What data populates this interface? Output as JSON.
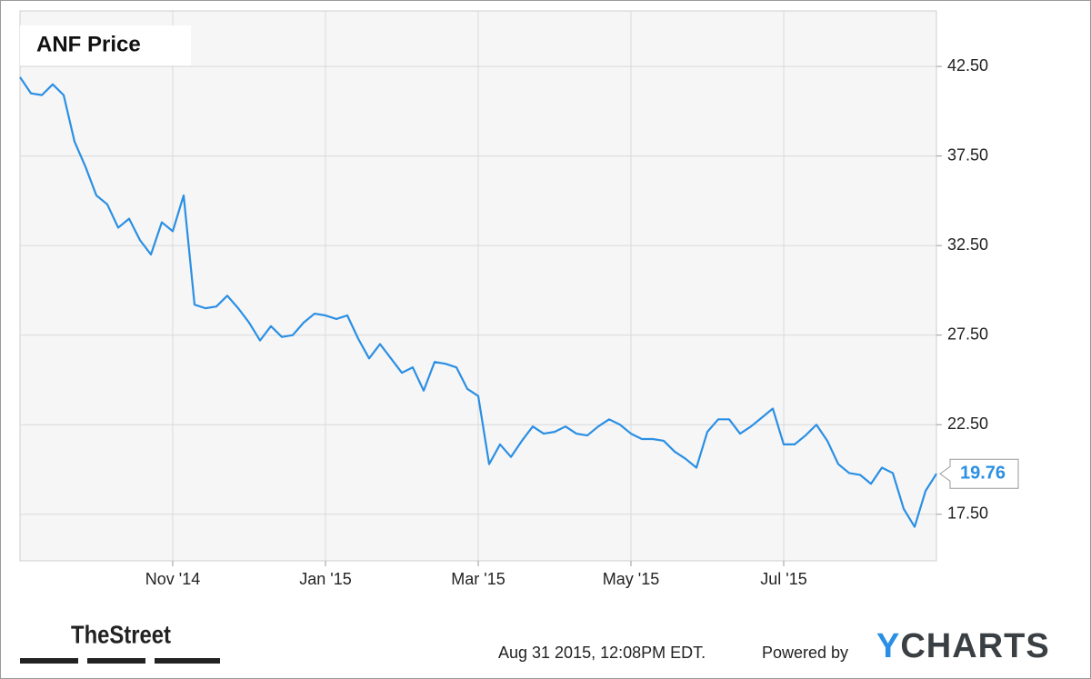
{
  "chart_data": {
    "type": "line",
    "title": "ANF Price",
    "categories": [
      null,
      null,
      null,
      null,
      null,
      null,
      null,
      null,
      null,
      null,
      null,
      null,
      null,
      null,
      "Nov '14",
      null,
      null,
      null,
      null,
      null,
      null,
      null,
      null,
      null,
      null,
      null,
      null,
      null,
      "Jan '15",
      null,
      null,
      null,
      null,
      null,
      null,
      null,
      null,
      null,
      null,
      null,
      null,
      null,
      "Mar '15",
      null,
      null,
      null,
      null,
      null,
      null,
      null,
      null,
      null,
      null,
      null,
      null,
      null,
      "May '15",
      null,
      null,
      null,
      null,
      null,
      null,
      null,
      null,
      null,
      null,
      null,
      null,
      null,
      "Jul '15",
      null,
      null,
      null,
      null,
      null,
      null,
      null,
      null,
      null,
      null,
      null,
      null,
      null,
      null
    ],
    "values": [
      41.9,
      41.0,
      40.9,
      41.5,
      40.9,
      38.3,
      36.9,
      35.3,
      34.8,
      33.5,
      34.0,
      32.8,
      32.0,
      33.8,
      33.3,
      35.3,
      29.2,
      29.0,
      29.1,
      29.7,
      29.0,
      28.2,
      27.2,
      28.0,
      27.4,
      27.5,
      28.2,
      28.7,
      28.6,
      28.4,
      28.6,
      27.3,
      26.2,
      27.0,
      26.2,
      25.4,
      25.7,
      24.4,
      26.0,
      25.9,
      25.7,
      24.5,
      24.1,
      20.3,
      21.4,
      20.7,
      21.6,
      22.4,
      22.0,
      22.1,
      22.4,
      22.0,
      21.9,
      22.4,
      22.8,
      22.5,
      22.0,
      21.7,
      21.7,
      21.6,
      21.0,
      20.6,
      20.1,
      22.1,
      22.8,
      22.8,
      22.0,
      22.4,
      22.9,
      23.4,
      21.4,
      21.4,
      21.9,
      22.5,
      21.6,
      20.3,
      19.8,
      19.7,
      19.2,
      20.1,
      19.8,
      17.8,
      16.8,
      18.8,
      19.76
    ],
    "color": "#2b8fe3",
    "ylim": [
      14.9,
      45.6
    ],
    "yticks": [
      {
        "value": 17.5,
        "label": "17.50"
      },
      {
        "value": 22.5,
        "label": "22.50"
      },
      {
        "value": 27.5,
        "label": "27.50"
      },
      {
        "value": 32.5,
        "label": "32.50"
      },
      {
        "value": 37.5,
        "label": "37.50"
      },
      {
        "value": 42.5,
        "label": "42.50"
      }
    ],
    "grid": true
  },
  "footer": {
    "logo": "TheStreet",
    "timestamp": "Aug 31 2015, 12:08PM EDT.",
    "powered_by": "Powered by",
    "brand": "YCHARTS"
  }
}
